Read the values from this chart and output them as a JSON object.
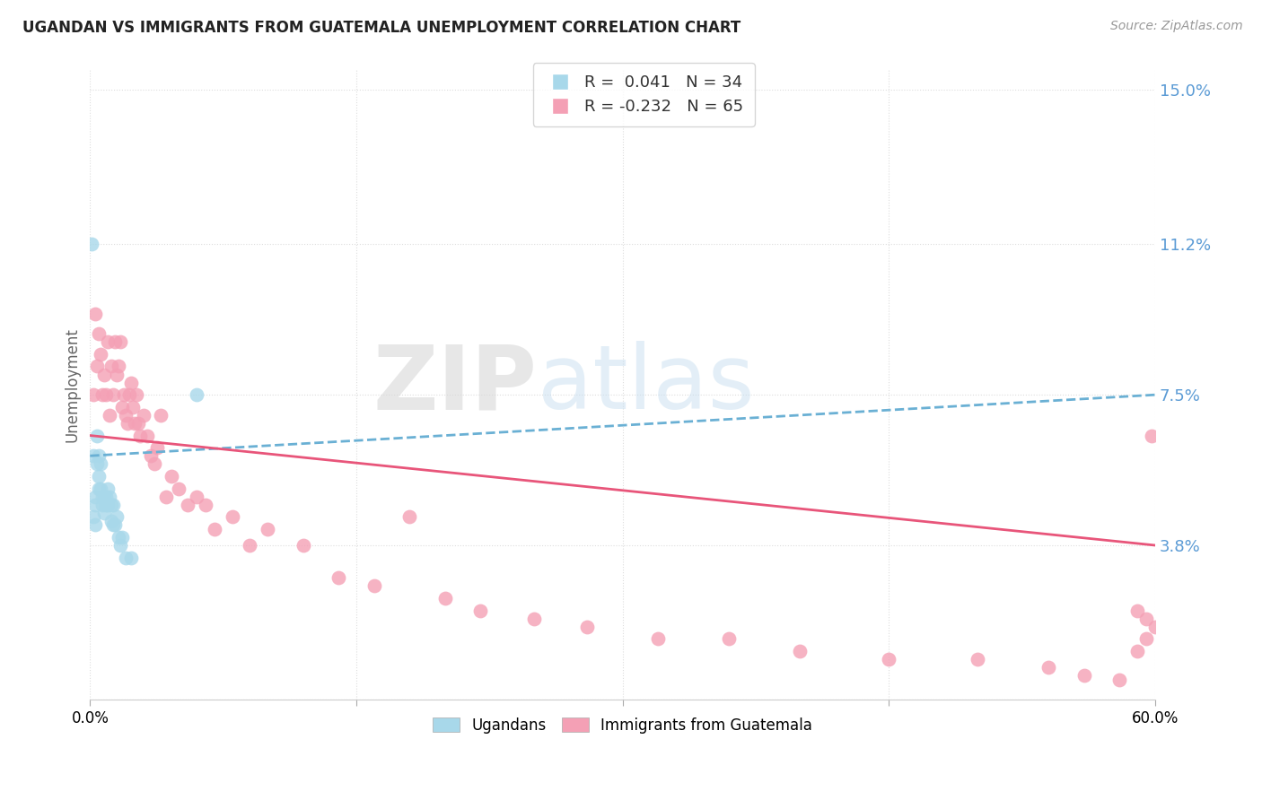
{
  "title": "UGANDAN VS IMMIGRANTS FROM GUATEMALA UNEMPLOYMENT CORRELATION CHART",
  "source": "Source: ZipAtlas.com",
  "ylabel": "Unemployment",
  "yticks": [
    0.0,
    0.038,
    0.075,
    0.112,
    0.15
  ],
  "ytick_labels": [
    "",
    "3.8%",
    "7.5%",
    "11.2%",
    "15.0%"
  ],
  "ugandan_color": "#a8d8ea",
  "guatemala_color": "#f4a0b5",
  "trend_ugandan_color": "#6ab0d4",
  "trend_guatemala_color": "#e8557a",
  "watermark_zip": "ZIP",
  "watermark_atlas": "atlas",
  "ugandan_x": [
    0.001,
    0.002,
    0.002,
    0.003,
    0.003,
    0.003,
    0.004,
    0.004,
    0.005,
    0.005,
    0.005,
    0.006,
    0.006,
    0.007,
    0.007,
    0.008,
    0.008,
    0.009,
    0.009,
    0.01,
    0.01,
    0.011,
    0.012,
    0.012,
    0.013,
    0.013,
    0.014,
    0.015,
    0.016,
    0.017,
    0.018,
    0.02,
    0.023,
    0.06
  ],
  "ugandan_y": [
    0.112,
    0.06,
    0.045,
    0.05,
    0.048,
    0.043,
    0.065,
    0.058,
    0.06,
    0.055,
    0.052,
    0.058,
    0.052,
    0.05,
    0.048,
    0.05,
    0.046,
    0.05,
    0.048,
    0.052,
    0.048,
    0.05,
    0.048,
    0.044,
    0.048,
    0.043,
    0.043,
    0.045,
    0.04,
    0.038,
    0.04,
    0.035,
    0.035,
    0.075
  ],
  "guatemala_x": [
    0.002,
    0.003,
    0.004,
    0.005,
    0.006,
    0.007,
    0.008,
    0.009,
    0.01,
    0.011,
    0.012,
    0.013,
    0.014,
    0.015,
    0.016,
    0.017,
    0.018,
    0.019,
    0.02,
    0.021,
    0.022,
    0.023,
    0.024,
    0.025,
    0.026,
    0.027,
    0.028,
    0.03,
    0.032,
    0.034,
    0.036,
    0.038,
    0.04,
    0.043,
    0.046,
    0.05,
    0.055,
    0.06,
    0.065,
    0.07,
    0.08,
    0.09,
    0.1,
    0.12,
    0.14,
    0.16,
    0.18,
    0.2,
    0.22,
    0.25,
    0.28,
    0.32,
    0.36,
    0.4,
    0.45,
    0.5,
    0.54,
    0.56,
    0.58,
    0.59,
    0.595,
    0.6,
    0.595,
    0.59,
    0.598
  ],
  "guatemala_y": [
    0.075,
    0.095,
    0.082,
    0.09,
    0.085,
    0.075,
    0.08,
    0.075,
    0.088,
    0.07,
    0.082,
    0.075,
    0.088,
    0.08,
    0.082,
    0.088,
    0.072,
    0.075,
    0.07,
    0.068,
    0.075,
    0.078,
    0.072,
    0.068,
    0.075,
    0.068,
    0.065,
    0.07,
    0.065,
    0.06,
    0.058,
    0.062,
    0.07,
    0.05,
    0.055,
    0.052,
    0.048,
    0.05,
    0.048,
    0.042,
    0.045,
    0.038,
    0.042,
    0.038,
    0.03,
    0.028,
    0.045,
    0.025,
    0.022,
    0.02,
    0.018,
    0.015,
    0.015,
    0.012,
    0.01,
    0.01,
    0.008,
    0.006,
    0.005,
    0.012,
    0.015,
    0.018,
    0.02,
    0.022,
    0.065
  ],
  "ug_trend_start_y": 0.06,
  "ug_trend_end_y": 0.075,
  "gt_trend_start_y": 0.065,
  "gt_trend_end_y": 0.038,
  "xmin": 0.0,
  "xmax": 0.6,
  "ymin": 0.0,
  "ymax": 0.155
}
